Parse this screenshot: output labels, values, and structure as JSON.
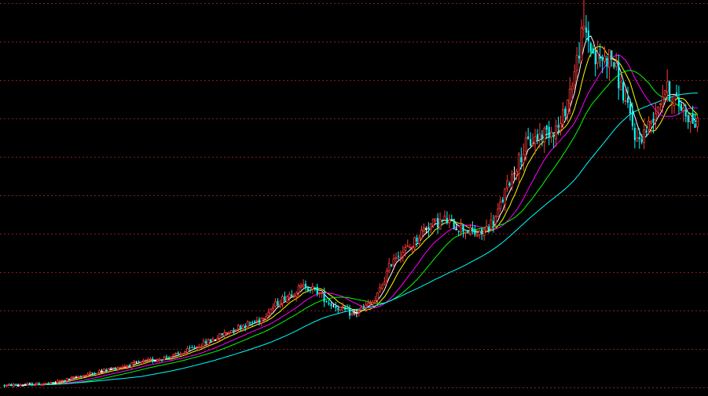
{
  "colors": {
    "background": "#000000",
    "grid": "#8b1a1a",
    "up": "#ff3b3b",
    "down": "#00ffff",
    "neutral": "#ffffff",
    "ma5": "#ffffff",
    "ma10": "#ffff00",
    "ma20": "#ff00ff",
    "ma30": "#00ff00",
    "ma60": "#00ffff"
  },
  "chart_data": {
    "type": "candlestick",
    "title": "",
    "xlabel": "",
    "ylabel": "",
    "grid": true,
    "legend": "none",
    "ylim": [
      0,
      100
    ],
    "ohlc_count": 300,
    "close_path": [
      [
        0,
        0.5
      ],
      [
        20,
        1.0
      ],
      [
        40,
        4.0
      ],
      [
        55,
        6.0
      ],
      [
        75,
        8.5
      ],
      [
        90,
        12.5
      ],
      [
        100,
        15.5
      ],
      [
        110,
        17.5
      ],
      [
        115,
        20.5
      ],
      [
        120,
        23.0
      ],
      [
        125,
        25.0
      ],
      [
        130,
        26.5
      ],
      [
        135,
        25.0
      ],
      [
        140,
        22.0
      ],
      [
        145,
        20.5
      ],
      [
        150,
        19.0
      ],
      [
        160,
        22.5
      ],
      [
        168,
        34.0
      ],
      [
        175,
        36.5
      ],
      [
        182,
        42.0
      ],
      [
        190,
        43.5
      ],
      [
        197,
        41.5
      ],
      [
        205,
        39.5
      ],
      [
        212,
        44.0
      ],
      [
        218,
        54.0
      ],
      [
        225,
        63.0
      ],
      [
        232,
        66.0
      ],
      [
        240,
        68.0
      ],
      [
        246,
        82.0
      ],
      [
        250,
        94.0
      ],
      [
        255,
        85.0
      ],
      [
        262,
        86.0
      ],
      [
        268,
        74.0
      ],
      [
        273,
        64.0
      ],
      [
        278,
        68.0
      ],
      [
        285,
        78.0
      ],
      [
        292,
        73.0
      ],
      [
        299,
        68.0
      ]
    ],
    "moving_averages": [
      {
        "period": 5,
        "color_key": "ma5"
      },
      {
        "period": 10,
        "color_key": "ma10"
      },
      {
        "period": 20,
        "color_key": "ma20"
      },
      {
        "period": 30,
        "color_key": "ma30"
      },
      {
        "period": 60,
        "color_key": "ma60"
      }
    ]
  }
}
